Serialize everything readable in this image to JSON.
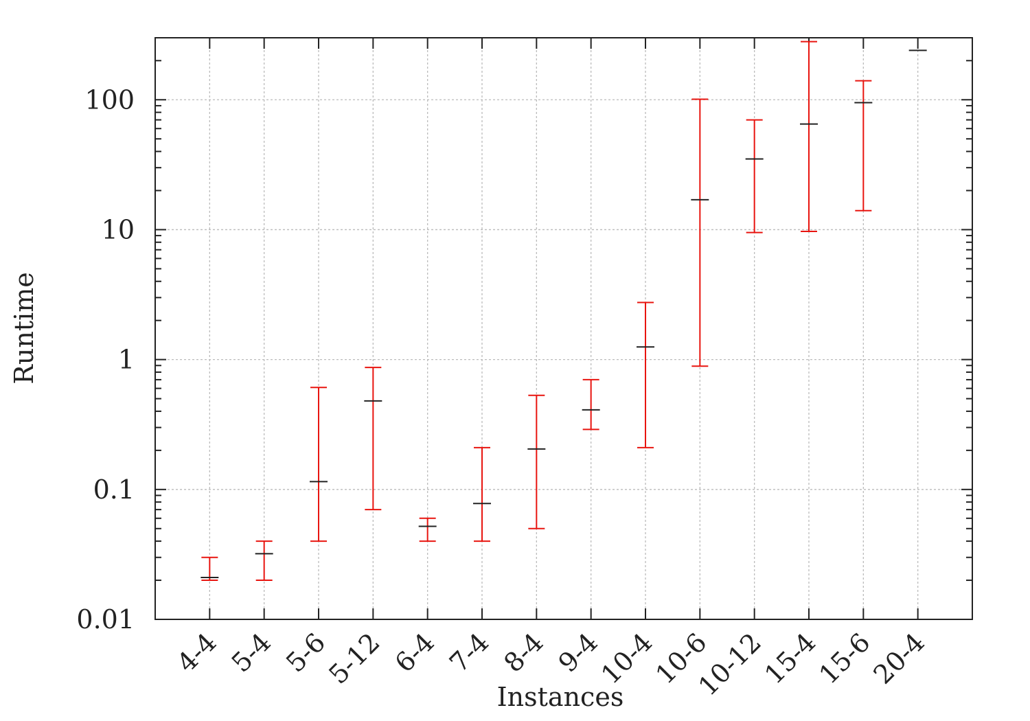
{
  "chart_data": {
    "type": "errorbar",
    "xlabel": "Instances",
    "ylabel": "Runtime",
    "yscale": "log",
    "ylim": [
      0.01,
      300
    ],
    "grid": true,
    "categories": [
      "4-4",
      "5-4",
      "5-6",
      "5-12",
      "6-4",
      "7-4",
      "8-4",
      "9-4",
      "10-4",
      "10-6",
      "10-12",
      "15-4",
      "15-6",
      "20-4"
    ],
    "y_ticks": [
      {
        "value": 0.01,
        "label": "0.01"
      },
      {
        "value": 0.1,
        "label": "0.1"
      },
      {
        "value": 1,
        "label": "1"
      },
      {
        "value": 10,
        "label": "10"
      },
      {
        "value": 100,
        "label": "100"
      }
    ],
    "series": [
      {
        "values": [
          0.021,
          0.032,
          0.115,
          0.48,
          0.052,
          0.078,
          0.205,
          0.41,
          1.25,
          17,
          35,
          65,
          95,
          240
        ]
      },
      {
        "low": [
          0.02,
          0.02,
          0.04,
          0.07,
          0.04,
          0.04,
          0.05,
          0.29,
          0.21,
          0.89,
          9.5,
          9.7,
          14,
          240
        ],
        "high": [
          0.03,
          0.04,
          0.61,
          0.87,
          0.06,
          0.21,
          0.53,
          0.7,
          2.75,
          101,
          70,
          280,
          140,
          240
        ]
      }
    ],
    "colors": {
      "mean": "#222222",
      "range": "#e8140f",
      "grid": "#bbbbbb",
      "axis": "#222222"
    }
  }
}
